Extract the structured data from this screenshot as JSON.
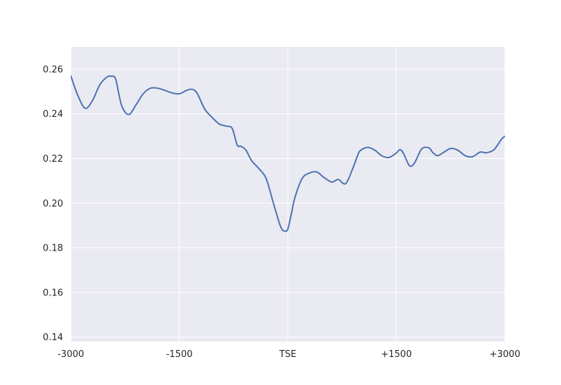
{
  "chart_data": {
    "type": "line",
    "title": "",
    "xlabel": "",
    "ylabel": "",
    "xlim": [
      -3000,
      3000
    ],
    "ylim": [
      0.138,
      0.27
    ],
    "grid": true,
    "colors": {
      "background": "#EAEAF2",
      "grid": "#FFFFFF",
      "line": "#4C72B0"
    },
    "x_ticks": [
      {
        "value": -3000,
        "label": "-3000"
      },
      {
        "value": -1500,
        "label": "-1500"
      },
      {
        "value": 0,
        "label": "TSE"
      },
      {
        "value": 1500,
        "label": "+1500"
      },
      {
        "value": 3000,
        "label": "+3000"
      }
    ],
    "y_ticks": [
      {
        "value": 0.14,
        "label": "0.14"
      },
      {
        "value": 0.16,
        "label": "0.16"
      },
      {
        "value": 0.18,
        "label": "0.18"
      },
      {
        "value": 0.2,
        "label": "0.20"
      },
      {
        "value": 0.22,
        "label": "0.22"
      },
      {
        "value": 0.24,
        "label": "0.24"
      },
      {
        "value": 0.26,
        "label": "0.26"
      }
    ],
    "series": [
      {
        "x": [
          -3000,
          -2900,
          -2800,
          -2700,
          -2600,
          -2500,
          -2440,
          -2380,
          -2300,
          -2200,
          -2100,
          -2000,
          -1900,
          -1800,
          -1700,
          -1600,
          -1500,
          -1400,
          -1320,
          -1250,
          -1150,
          -1050,
          -950,
          -850,
          -770,
          -700,
          -650,
          -580,
          -500,
          -400,
          -300,
          -200,
          -100,
          -40,
          0,
          50,
          100,
          200,
          300,
          400,
          500,
          600,
          650,
          700,
          800,
          900,
          960,
          1000,
          1100,
          1200,
          1300,
          1400,
          1500,
          1550,
          1600,
          1680,
          1750,
          1850,
          1950,
          2000,
          2070,
          2150,
          2250,
          2350,
          2450,
          2550,
          2650,
          2700,
          2750,
          2850,
          2950,
          3000
        ],
        "y": [
          0.257,
          0.248,
          0.2425,
          0.246,
          0.253,
          0.2565,
          0.2568,
          0.2555,
          0.244,
          0.2397,
          0.244,
          0.249,
          0.2515,
          0.2515,
          0.2505,
          0.2494,
          0.249,
          0.2505,
          0.251,
          0.249,
          0.2422,
          0.2385,
          0.2355,
          0.2345,
          0.2335,
          0.226,
          0.2255,
          0.2238,
          0.219,
          0.2155,
          0.211,
          0.2,
          0.1895,
          0.1875,
          0.1885,
          0.1955,
          0.2028,
          0.2112,
          0.2135,
          0.214,
          0.2115,
          0.2095,
          0.21,
          0.2106,
          0.2088,
          0.2158,
          0.221,
          0.2235,
          0.225,
          0.2238,
          0.2212,
          0.2205,
          0.2225,
          0.224,
          0.2222,
          0.2168,
          0.218,
          0.2243,
          0.2248,
          0.2228,
          0.2213,
          0.2227,
          0.2245,
          0.2237,
          0.2213,
          0.2208,
          0.2228,
          0.2228,
          0.2226,
          0.224,
          0.2285,
          0.23
        ]
      }
    ]
  }
}
